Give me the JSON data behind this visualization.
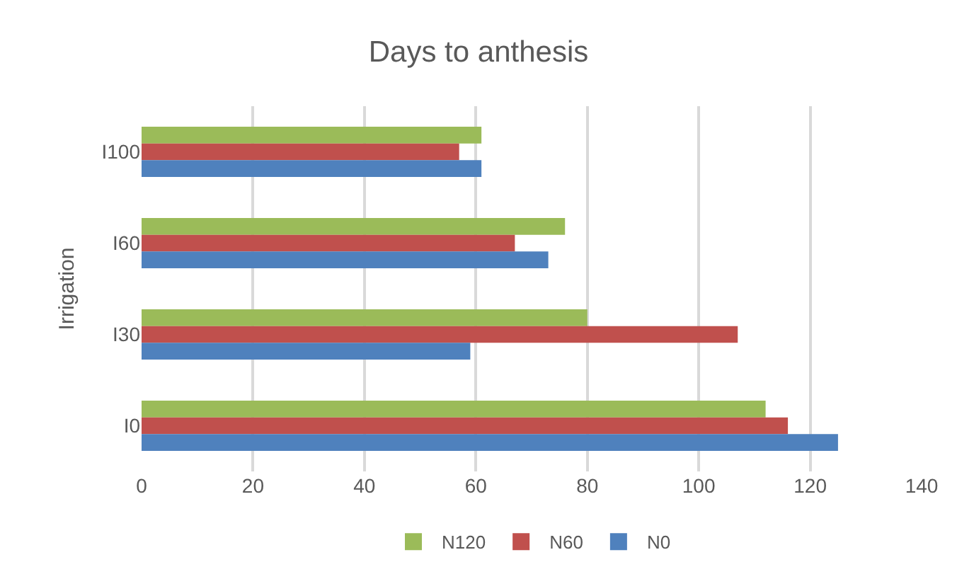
{
  "chart_data": {
    "type": "bar",
    "orientation": "horizontal",
    "title": "Days to anthesis",
    "ylabel": "Irrigation",
    "categories": [
      "I100",
      "I60",
      "I30",
      "I0"
    ],
    "series": [
      {
        "name": "N120",
        "color": "#9bbb59",
        "values": [
          61,
          76,
          80,
          112
        ]
      },
      {
        "name": "N60",
        "color": "#c0504d",
        "values": [
          57,
          67,
          107,
          116
        ]
      },
      {
        "name": "N0",
        "color": "#4f81bd",
        "values": [
          61,
          73,
          59,
          125
        ]
      }
    ],
    "xlim": [
      0,
      140
    ],
    "xticks": [
      0,
      20,
      40,
      60,
      80,
      100,
      120,
      140
    ],
    "grid": "x",
    "legend": "bottom"
  }
}
